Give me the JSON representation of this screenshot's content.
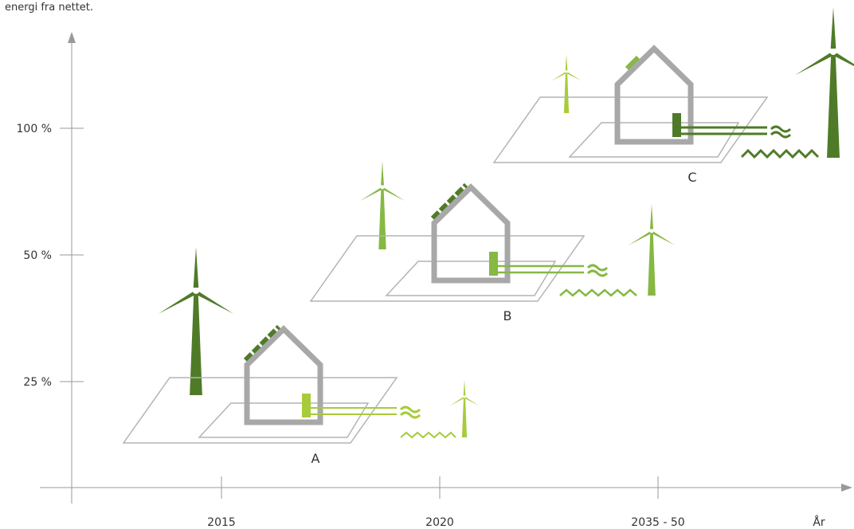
{
  "header_text": "energi fra nettet.",
  "y_axis": {
    "labels": [
      "100 %",
      "50 %",
      "25 %"
    ]
  },
  "x_axis": {
    "labels": [
      "2015",
      "2020",
      "2035 - 50"
    ],
    "title": "År"
  },
  "houses": [
    {
      "label": "A"
    },
    {
      "label": "B"
    },
    {
      "label": "C"
    }
  ]
}
